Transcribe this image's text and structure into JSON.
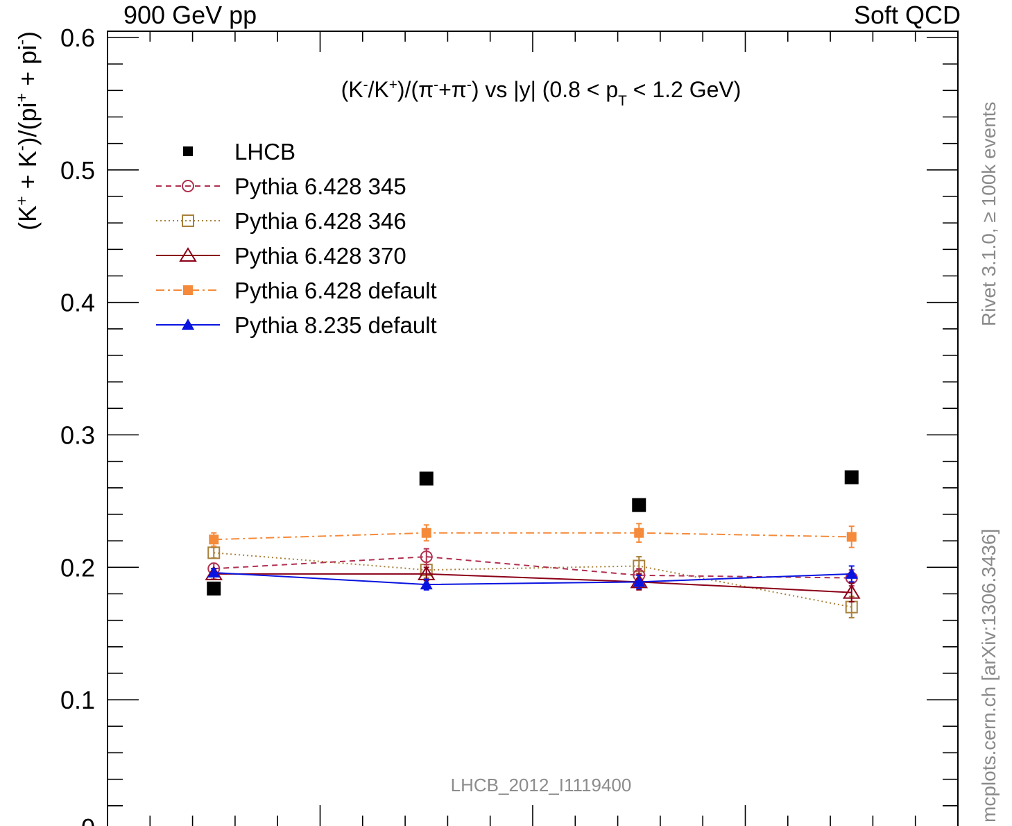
{
  "header": {
    "left": "900 GeV pp",
    "right": "Soft QCD"
  },
  "side_labels": {
    "rivet": "Rivet 3.1.0, ≥ 100k events",
    "mcplots": "mcplots.cern.ch [arXiv:1306.3436]"
  },
  "chart_data": {
    "type": "scatter",
    "title_parts": [
      "(K",
      "-",
      "/K",
      "+",
      ")/(π",
      "-",
      "+π",
      "-",
      ") vs |y| (0.8 < p",
      "T",
      " < 1.2 GeV)"
    ],
    "ylabel_parts": [
      "(K",
      "+",
      " + K",
      "-",
      ")/(pi",
      "+",
      " + pi",
      "-",
      ")"
    ],
    "watermark": "LHCB_2012_I1119400",
    "xlim": [
      2.5,
      4.5
    ],
    "ylim": [
      0,
      0.6
    ],
    "yticks": [
      {
        "value": 0.1,
        "label": "0.1"
      },
      {
        "value": 0.2,
        "label": "0.2"
      },
      {
        "value": 0.3,
        "label": "0.3"
      },
      {
        "value": 0.4,
        "label": "0.4"
      },
      {
        "value": 0.5,
        "label": "0.5"
      },
      {
        "value": 0.6,
        "label": "0.6"
      }
    ],
    "ytick_bottom_partial": "0",
    "x": [
      2.75,
      3.25,
      3.75,
      4.25
    ],
    "series": [
      {
        "name": "LHCB",
        "marker": "filled-square",
        "color": "#000000",
        "line": "none",
        "values": [
          0.184,
          0.267,
          0.247,
          0.268
        ],
        "errors": [
          0,
          0,
          0,
          0
        ]
      },
      {
        "name": "Pythia 6.428 345",
        "marker": "open-circle",
        "color": "#b03050",
        "line": "dashed",
        "values": [
          0.199,
          0.208,
          0.194,
          0.192
        ],
        "errors": [
          0.004,
          0.006,
          0.005,
          0.006
        ]
      },
      {
        "name": "Pythia 6.428 346",
        "marker": "open-square",
        "color": "#a8803a",
        "line": "dotted",
        "values": [
          0.211,
          0.198,
          0.201,
          0.17
        ],
        "errors": [
          0.004,
          0.006,
          0.007,
          0.008
        ]
      },
      {
        "name": "Pythia 6.428 370",
        "marker": "open-triangle",
        "color": "#8b0018",
        "line": "solid",
        "values": [
          0.195,
          0.195,
          0.189,
          0.181
        ],
        "errors": [
          0.004,
          0.005,
          0.006,
          0.007
        ]
      },
      {
        "name": "Pythia 6.428 default",
        "marker": "filled-square-small",
        "color": "#f58a3a",
        "line": "dashdot",
        "values": [
          0.221,
          0.226,
          0.226,
          0.223
        ],
        "errors": [
          0.005,
          0.006,
          0.007,
          0.008
        ]
      },
      {
        "name": "Pythia 8.235 default",
        "marker": "filled-triangle",
        "color": "#0a14e0",
        "line": "solid",
        "values": [
          0.196,
          0.187,
          0.189,
          0.195
        ],
        "errors": [
          0.003,
          0.004,
          0.005,
          0.006
        ]
      }
    ],
    "legend_position": "top-left",
    "grid": false
  }
}
